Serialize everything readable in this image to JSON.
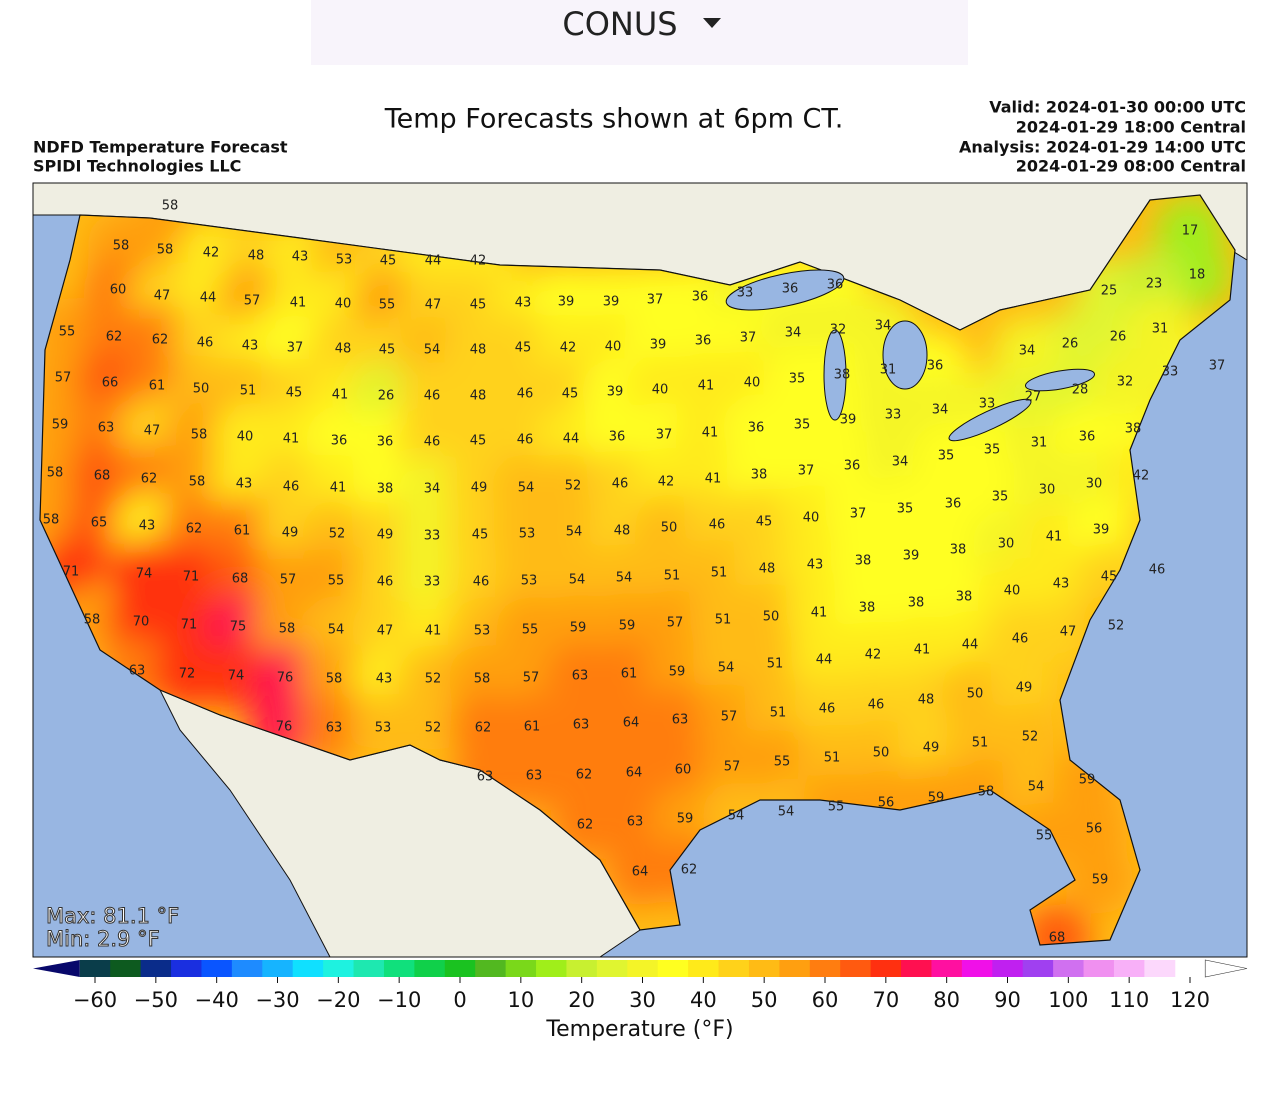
{
  "header": {
    "dropdown": "CONUS"
  },
  "map": {
    "note": "Temp Forecasts shown at 6pm CT.",
    "title": "NDFD Temperature Forecast",
    "source": "SPIDI Technologies LLC",
    "valid": [
      "Valid: 2024-01-30 00:00 UTC",
      "2024-01-29 18:00 Central",
      "Analysis: 2024-01-29 14:00 UTC",
      "2024-01-29 08:00 Central"
    ],
    "max": "Max: 81.1 °F",
    "min": "Min: 2.9 °F",
    "temperatures": [
      58,
      58,
      58,
      42,
      48,
      43,
      53,
      45,
      44,
      42,
      60,
      47,
      44,
      57,
      41,
      40,
      55,
      47,
      45,
      43,
      39,
      39,
      37,
      36,
      33,
      36,
      36,
      55,
      62,
      62,
      46,
      43,
      37,
      48,
      45,
      54,
      48,
      45,
      42,
      40,
      39,
      36,
      37,
      34,
      32,
      34,
      57,
      66,
      61,
      50,
      51,
      45,
      41,
      26,
      46,
      48,
      46,
      45,
      39,
      40,
      41,
      40,
      35,
      38,
      31,
      36,
      59,
      63,
      47,
      58,
      40,
      41,
      36,
      36,
      46,
      45,
      46,
      44,
      36,
      37,
      41,
      36,
      35,
      39,
      33,
      34,
      33,
      27,
      28,
      58,
      68,
      62,
      58,
      43,
      46,
      41,
      38,
      34,
      49,
      54,
      52,
      46,
      42,
      41,
      38,
      37,
      36,
      34,
      35,
      35,
      31,
      36,
      38,
      58,
      65,
      43,
      62,
      61,
      49,
      52,
      49,
      33,
      45,
      53,
      54,
      48,
      50,
      46,
      45,
      40,
      37,
      35,
      36,
      35,
      30,
      30,
      42,
      71,
      74,
      71,
      68,
      57,
      55,
      46,
      33,
      46,
      53,
      54,
      54,
      51,
      51,
      48,
      43,
      38,
      39,
      38,
      30,
      41,
      39,
      58,
      70,
      71,
      75,
      58,
      54,
      47,
      41,
      53,
      55,
      59,
      59,
      57,
      51,
      50,
      41,
      38,
      38,
      38,
      40,
      43,
      45,
      46,
      63,
      72,
      74,
      76,
      58,
      43,
      52,
      58,
      57,
      63,
      61,
      59,
      54,
      51,
      44,
      42,
      41,
      44,
      46,
      47,
      52,
      76,
      63,
      53,
      52,
      62,
      61,
      63,
      64,
      63,
      57,
      51,
      46,
      46,
      48,
      50,
      49,
      63,
      63,
      62,
      64,
      60,
      57,
      55,
      51,
      50,
      49,
      51,
      52,
      62,
      63,
      59,
      54,
      54,
      55,
      56,
      59,
      58,
      54,
      59,
      64,
      62,
      55,
      56,
      59,
      68,
      17,
      18,
      25,
      23,
      26,
      26,
      34,
      31,
      32,
      33,
      37
    ]
  },
  "colorbar": {
    "label": "Temperature (°F)",
    "ticks": [
      {
        "value": -60,
        "label": "−60"
      },
      {
        "value": -50,
        "label": "−50"
      },
      {
        "value": -40,
        "label": "−40"
      },
      {
        "value": -30,
        "label": "−30"
      },
      {
        "value": -20,
        "label": "−20"
      },
      {
        "value": -10,
        "label": "−10"
      },
      0,
      10,
      20,
      30,
      40,
      50,
      60,
      70,
      80,
      90,
      100,
      110,
      120
    ],
    "colors": [
      "#08086b",
      "#0a3d4a",
      "#0d5a1f",
      "#0a2c8a",
      "#1a2fe0",
      "#0a55ff",
      "#1e8bff",
      "#16b4ff",
      "#10e0ff",
      "#1ef2e0",
      "#1ee8b0",
      "#10e07c",
      "#10d04a",
      "#1ac220",
      "#52b820",
      "#7ad81a",
      "#a0ee1a",
      "#c8f030",
      "#e0f530",
      "#f4f428",
      "#ffff20",
      "#ffea1a",
      "#ffd21a",
      "#ffbb15",
      "#ff9f10",
      "#ff7d10",
      "#ff5a10",
      "#ff3010",
      "#ff1050",
      "#ff10a0",
      "#f010e8",
      "#c020f0",
      "#a040f0",
      "#d070f0",
      "#f090f0",
      "#f8b0f8",
      "#fcd8fc",
      "#ffffff"
    ]
  }
}
